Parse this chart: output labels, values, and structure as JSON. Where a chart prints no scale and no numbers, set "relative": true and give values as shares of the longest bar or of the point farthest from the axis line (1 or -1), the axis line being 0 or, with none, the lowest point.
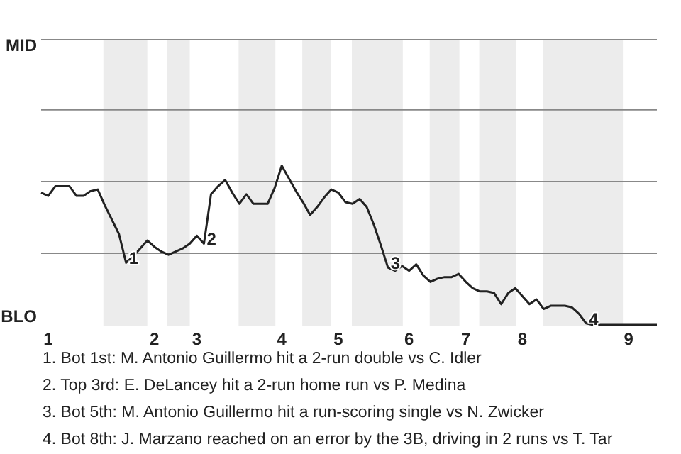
{
  "chart_data": {
    "type": "line",
    "relative": true,
    "marker": "none",
    "line_style": "solid",
    "categories": [
      null,
      "1",
      null,
      null,
      null,
      null,
      null,
      null,
      null,
      null,
      null,
      null,
      null,
      null,
      null,
      null,
      "2",
      null,
      null,
      null,
      null,
      null,
      "3",
      null,
      null,
      null,
      null,
      null,
      null,
      null,
      null,
      null,
      null,
      null,
      "4",
      null,
      null,
      null,
      null,
      null,
      null,
      null,
      "5",
      null,
      null,
      null,
      null,
      null,
      null,
      null,
      null,
      null,
      "6",
      null,
      null,
      null,
      null,
      null,
      null,
      null,
      "7",
      null,
      null,
      null,
      null,
      null,
      null,
      null,
      "8",
      null,
      null,
      null,
      null,
      null,
      null,
      null,
      null,
      null,
      null,
      null,
      null,
      null,
      null,
      "9",
      null,
      null,
      null,
      null
    ],
    "ref_lines": [
      {
        "axis": "y",
        "value": 1.79,
        "label": "MID",
        "color": "#888888"
      },
      {
        "axis": "y",
        "value": 1.35,
        "label": null,
        "color": "#888888"
      },
      {
        "axis": "y",
        "value": 0.9,
        "label": null,
        "color": "#888888"
      },
      {
        "axis": "y",
        "value": 0.45,
        "label": null,
        "color": "#888888"
      }
    ],
    "series": [
      {
        "color": "#222222",
        "values": [
          0.83,
          0.81,
          0.87,
          0.87,
          0.87,
          0.81,
          0.81,
          0.84,
          0.85,
          0.75,
          0.66,
          0.57,
          0.39,
          0.43,
          0.48,
          0.53,
          0.49,
          0.46,
          0.44,
          0.46,
          0.48,
          0.51,
          0.56,
          0.51,
          0.82,
          0.87,
          0.91,
          0.83,
          0.76,
          0.82,
          0.76,
          0.76,
          0.76,
          0.86,
          1,
          0.92,
          0.84,
          0.77,
          0.69,
          0.74,
          0.8,
          0.85,
          0.83,
          0.77,
          0.76,
          0.79,
          0.74,
          0.63,
          0.5,
          0.36,
          0.34,
          0.37,
          0.34,
          0.38,
          0.31,
          0.27,
          0.29,
          0.3,
          0.3,
          0.32,
          0.27,
          0.23,
          0.21,
          0.21,
          0.2,
          0.13,
          0.2,
          0.23,
          0.18,
          0.13,
          0.16,
          0.1,
          0.12,
          0.12,
          0.12,
          0.11,
          0.07,
          0.01,
          0,
          0,
          0,
          0,
          0,
          0,
          0,
          0,
          0,
          0
        ]
      }
    ],
    "annotations": [
      "BLO",
      {
        "text": "1",
        "y": 0.39
      },
      {
        "text": "2",
        "y": 0.51
      },
      {
        "text": "3",
        "y": 0.36
      },
      {
        "text": "4",
        "y": 0.01
      },
      "1. Bot 1st: M. Antonio Guillermo hit a 2-run double vs C. Idler",
      "2. Top 3rd: E. DeLancey hit a 2-run home run vs P. Medina",
      "3. Bot 5th: M. Antonio Guillermo hit a run-scoring single vs N. Zwicker",
      "4. Bot 8th: J. Marzano reached on an error by the 3B, driving in 2 runs vs T. Tar"
    ]
  }
}
